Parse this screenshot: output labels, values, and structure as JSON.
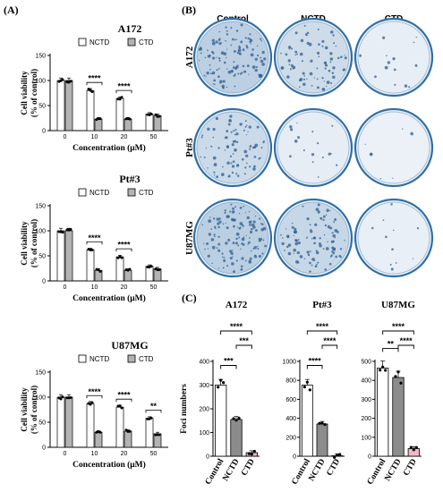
{
  "panels": {
    "A": "(A)",
    "B": "(B)",
    "C": "(C)"
  },
  "colors": {
    "nctd_bar": "#ffffff",
    "ctd_bar": "#b3b3b3",
    "control_bar_viability": "#ffffff",
    "foci_control": "#ffffff",
    "foci_nctd": "#8c8c8c",
    "foci_ctd": "#f4b6c2",
    "dish_rim": "#2f6fa6",
    "colony": "#4a7fb3"
  },
  "panel_b": {
    "columns": [
      "Control",
      "NCTD",
      "CTD"
    ],
    "rows": [
      "A172",
      "Pt#3",
      "U87MG"
    ],
    "colony_density": [
      [
        0.85,
        0.55,
        0.1
      ],
      [
        0.6,
        0.12,
        0.05
      ],
      [
        0.9,
        0.7,
        0.08
      ]
    ]
  },
  "chart_data": [
    {
      "type": "bar",
      "title": "A172",
      "xlabel": "Concentration (μM)",
      "ylabel": "Cell viability (% of control)",
      "categories": [
        "0",
        "10",
        "20",
        "50"
      ],
      "ylim": [
        0,
        150
      ],
      "yticks": [
        0,
        50,
        100,
        150
      ],
      "legend": [
        "NCTD",
        "CTD"
      ],
      "series": [
        {
          "name": "NCTD",
          "values": [
            100,
            80,
            64,
            33
          ]
        },
        {
          "name": "CTD",
          "values": [
            100,
            23,
            23,
            30
          ]
        }
      ],
      "significance": [
        {
          "category": "10",
          "label": "****"
        },
        {
          "category": "20",
          "label": "****"
        }
      ]
    },
    {
      "type": "bar",
      "title": "Pt#3",
      "xlabel": "Concentration (μM)",
      "ylabel": "Cell viability (% of control)",
      "categories": [
        "0",
        "10",
        "20",
        "50"
      ],
      "ylim": [
        0,
        150
      ],
      "yticks": [
        0,
        50,
        100,
        150
      ],
      "legend": [
        "NCTD",
        "CTD"
      ],
      "series": [
        {
          "name": "NCTD",
          "values": [
            100,
            62,
            48,
            29
          ]
        },
        {
          "name": "CTD",
          "values": [
            100,
            21,
            21,
            24
          ]
        }
      ],
      "significance": [
        {
          "category": "10",
          "label": "****"
        },
        {
          "category": "20",
          "label": "****"
        }
      ]
    },
    {
      "type": "bar",
      "title": "U87MG",
      "xlabel": "Concentration (μM)",
      "ylabel": "Cell viability (% of control)",
      "categories": [
        "0",
        "10",
        "20",
        "50"
      ],
      "ylim": [
        0,
        150
      ],
      "yticks": [
        0,
        50,
        100,
        150
      ],
      "legend": [
        "NCTD",
        "CTD"
      ],
      "series": [
        {
          "name": "NCTD",
          "values": [
            100,
            87,
            80,
            58
          ]
        },
        {
          "name": "CTD",
          "values": [
            100,
            30,
            32,
            27
          ]
        }
      ],
      "significance": [
        {
          "category": "10",
          "label": "****"
        },
        {
          "category": "20",
          "label": "****"
        },
        {
          "category": "50",
          "label": "**"
        }
      ]
    },
    {
      "type": "bar",
      "title": "A172",
      "xlabel": "",
      "ylabel": "Foci numbers",
      "categories": [
        "Control",
        "NCTD",
        "CTD"
      ],
      "ylim": [
        0,
        400
      ],
      "yticks": [
        0,
        100,
        200,
        300,
        400
      ],
      "values": [
        300,
        155,
        15
      ],
      "significance": [
        {
          "from": "Control",
          "to": "NCTD",
          "label": "***"
        },
        {
          "from": "NCTD",
          "to": "CTD",
          "label": "***"
        },
        {
          "from": "Control",
          "to": "CTD",
          "label": "****"
        }
      ]
    },
    {
      "type": "bar",
      "title": "Pt#3",
      "xlabel": "",
      "ylabel": "",
      "categories": [
        "Control",
        "NCTD",
        "CTD"
      ],
      "ylim": [
        0,
        1000
      ],
      "yticks": [
        0,
        200,
        400,
        600,
        800,
        1000
      ],
      "values": [
        750,
        340,
        5
      ],
      "significance": [
        {
          "from": "Control",
          "to": "NCTD",
          "label": "****"
        },
        {
          "from": "NCTD",
          "to": "CTD",
          "label": "****"
        },
        {
          "from": "Control",
          "to": "CTD",
          "label": "****"
        }
      ]
    },
    {
      "type": "bar",
      "title": "U87MG",
      "xlabel": "",
      "ylabel": "",
      "categories": [
        "Control",
        "NCTD",
        "CTD"
      ],
      "ylim": [
        0,
        500
      ],
      "yticks": [
        0,
        100,
        200,
        300,
        400,
        500
      ],
      "values": [
        465,
        415,
        40
      ],
      "significance": [
        {
          "from": "Control",
          "to": "NCTD",
          "label": "**"
        },
        {
          "from": "NCTD",
          "to": "CTD",
          "label": "****"
        },
        {
          "from": "Control",
          "to": "CTD",
          "label": "****"
        }
      ]
    }
  ]
}
